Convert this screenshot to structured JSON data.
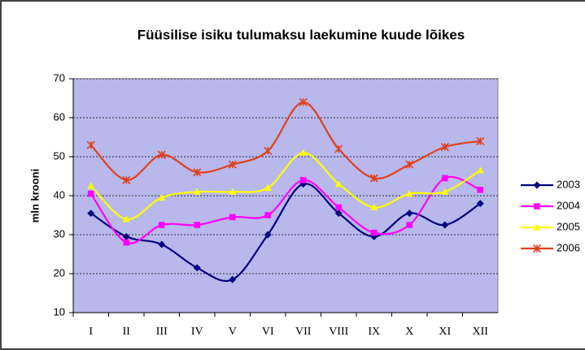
{
  "chart_data": {
    "type": "line",
    "title": "Füüsilise isiku tulumaksu laekumine kuude lõikes",
    "y_label": "mln krooni",
    "categories": [
      "I",
      "II",
      "III",
      "IV",
      "V",
      "VI",
      "VII",
      "VIII",
      "IX",
      "X",
      "XI",
      "XII"
    ],
    "series": [
      {
        "name": "2003",
        "color": "#000080",
        "marker": "diamond",
        "values": [
          35.5,
          29.5,
          27.5,
          21.5,
          18.5,
          30,
          43,
          35.5,
          29.5,
          35.5,
          32.5,
          38
        ]
      },
      {
        "name": "2004",
        "color": "#ff00ff",
        "marker": "square",
        "values": [
          40.5,
          28,
          32.5,
          32.5,
          34.5,
          35,
          44,
          37,
          30.5,
          32.5,
          44.5,
          41.5
        ]
      },
      {
        "name": "2005",
        "color": "#ffff00",
        "marker": "triangle",
        "values": [
          42.5,
          34,
          39.5,
          41,
          41,
          42,
          51,
          43,
          37,
          40.5,
          41,
          46.5
        ]
      },
      {
        "name": "2006",
        "color": "#e0401c",
        "marker": "x",
        "values": [
          53,
          44,
          50.5,
          46,
          48,
          51.5,
          64,
          52,
          44.5,
          48,
          52.5,
          54
        ]
      }
    ],
    "ylim": [
      10,
      70
    ],
    "yticks": [
      10,
      20,
      30,
      40,
      50,
      60,
      70
    ],
    "grid": true,
    "plot_background": "#b8b8ec",
    "smooth": true,
    "legend": "right"
  }
}
